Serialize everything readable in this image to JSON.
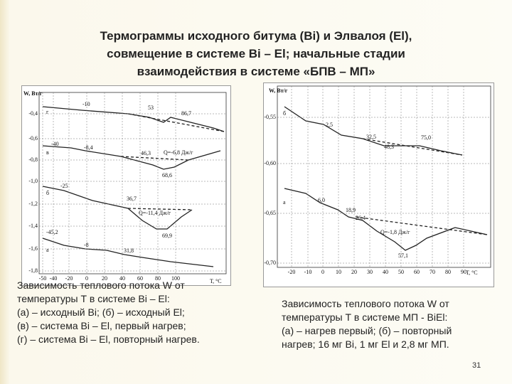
{
  "title": [
    "Термограммы исходного битума (Bi) и Элвалоя (El),",
    "совмещение в системе Bi – El;  начальные стадии",
    "взаимодействия в системе «БПВ – МП»"
  ],
  "figures": [
    {
      "y_axis_label": "W, Вт/г",
      "x_axis_label": "Т, °С",
      "yticks": [
        "-0,4",
        "-0,6",
        "-0,8",
        "-1,0",
        "-1,2",
        "-1,4",
        "-1,6",
        "-1,8"
      ],
      "xticks": [
        "-50",
        "-40",
        "-20",
        "0",
        "20",
        "40",
        "60",
        "80",
        "100"
      ],
      "annotations": [
        "г",
        "-10",
        "53",
        "86,7",
        "в",
        "-40",
        "-8,4",
        "46,3",
        "Q=-6,8 Дж/г",
        "68,6",
        "б",
        "-25",
        "36,7",
        "Q=-11,4 Дж/г",
        "69,9",
        "-45,2",
        "а",
        "-8",
        "31,8"
      ]
    },
    {
      "y_axis_label": "W, Вт/г",
      "x_axis_label": "Т, °С",
      "yticks": [
        "-0,55",
        "-0,60",
        "-0,65",
        "-0,70"
      ],
      "xticks": [
        "-20",
        "-10",
        "0",
        "10",
        "20",
        "30",
        "40",
        "50",
        "60",
        "70",
        "80",
        "90"
      ],
      "annotations": [
        "б",
        "2,5",
        "32,5",
        "48,3",
        "75,0",
        "а",
        "6,0",
        "18,9",
        "26,4",
        "Q=-1,8 Дж/г",
        "57,1"
      ]
    }
  ],
  "captions": [
    [
      "Зависимость теплового потока W от",
      "температуры Т в системе Bi – El:",
      "(а) – исходный Bi; (б) – исходный El;",
      "(в) – система Bi – El, первый нагрев;",
      "(г) – система Bi – El, повторный нагрев."
    ],
    [
      "Зависимость теплового потока W от",
      "температуры Т в системе МП - BiEl:",
      "(а) – нагрев первый; (б) – повторный",
      "нагрев; 16 мг Bi, 1 мг El и 2,8 мг МП."
    ]
  ],
  "page_number": "31"
}
